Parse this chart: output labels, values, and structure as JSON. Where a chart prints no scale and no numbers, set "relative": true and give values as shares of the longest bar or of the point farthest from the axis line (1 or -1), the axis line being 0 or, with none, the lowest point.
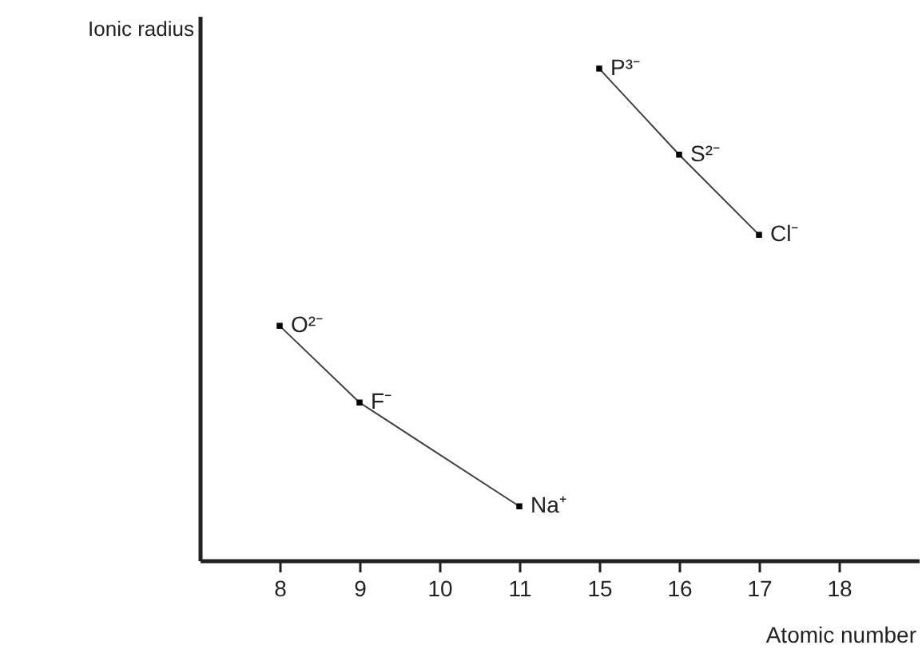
{
  "chart_data": {
    "type": "line",
    "xlabel": "Atomic number",
    "ylabel": "Ionic radius",
    "relative": true,
    "marker": "square",
    "line_style": "solid",
    "categories": [
      "8",
      "9",
      "10",
      "11",
      "15",
      "16",
      "17",
      "18"
    ],
    "series": [
      {
        "color": "#404040",
        "values": [
          0.477,
          0.321,
          null,
          0.11,
          null,
          null,
          null,
          null
        ]
      },
      {
        "color": "#404040",
        "values": [
          null,
          null,
          null,
          null,
          1,
          0.825,
          0.662,
          null
        ]
      }
    ],
    "annotations": [
      {
        "text": "O²⁻",
        "x": "8",
        "y": 0.477
      },
      {
        "text": "F⁻",
        "x": "9",
        "y": 0.321
      },
      {
        "text": "Na⁺",
        "x": "11",
        "y": 0.11
      },
      {
        "text": "P³⁻",
        "x": "15",
        "y": 1
      },
      {
        "text": "S²⁻",
        "x": "16",
        "y": 0.825
      },
      {
        "text": "Cl⁻",
        "x": "17",
        "y": 0.662
      }
    ]
  }
}
